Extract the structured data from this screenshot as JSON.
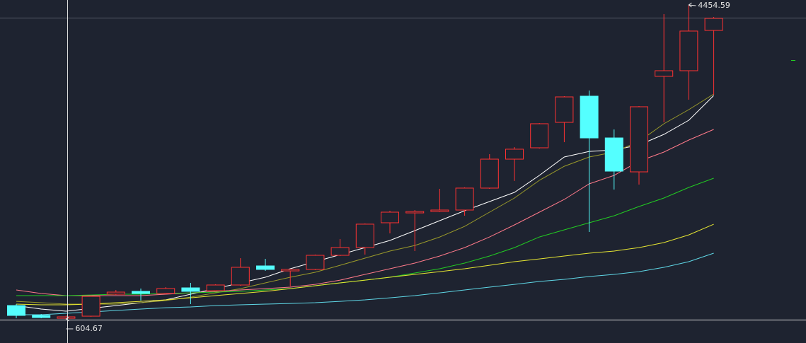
{
  "chart_data": {
    "type": "candlestick",
    "categories": [
      null,
      null,
      null,
      null,
      null,
      null,
      null,
      null,
      null,
      null,
      null,
      null,
      null,
      null,
      null,
      null,
      null,
      null,
      null,
      null,
      null,
      null,
      null,
      null,
      null,
      null,
      null,
      null,
      null
    ],
    "open": [
      769,
      648,
      613,
      639,
      908,
      943,
      917,
      986,
      951,
      1021,
      1255,
      1194,
      1212,
      1385,
      1480,
      1784,
      1905,
      1922,
      1940,
      2209,
      2564,
      2703,
      3015,
      3336,
      2824,
      2408,
      3579,
      3648,
      4142
    ],
    "high": [
      787,
      665,
      648,
      891,
      960,
      978,
      995,
      1047,
      1030,
      1350,
      1342,
      1220,
      1394,
      1585,
      1775,
      1931,
      1940,
      2200,
      2218,
      2625,
      2712,
      3006,
      3336,
      3405,
      2928,
      3215,
      4342,
      4454.59,
      4307
    ],
    "low": [
      613,
      613,
      604.67,
      631,
      900,
      830,
      908,
      787,
      943,
      1012,
      1194,
      1004,
      1203,
      1376,
      1394,
      1654,
      1437,
      1914,
      1871,
      2200,
      2296,
      2694,
      2772,
      1671,
      2191,
      2252,
      3015,
      3293,
      3353
    ],
    "close": [
      648,
      622,
      631,
      882,
      934,
      917,
      978,
      943,
      1021,
      1238,
      1212,
      1212,
      1385,
      1480,
      1767,
      1914,
      1922,
      1940,
      2209,
      2564,
      2686,
      2998,
      3327,
      2824,
      2417,
      3206,
      3648,
      4134,
      4290
    ],
    "up_color": "#ff3232",
    "down_color": "#54ffff",
    "series": [
      {
        "color": "#ffffff",
        "values": [
          769,
          726,
          700,
          735,
          769,
          804,
          839,
          908,
          977,
          1047,
          1116,
          1220,
          1307,
          1393,
          1480,
          1567,
          1688,
          1810,
          1931,
          2044,
          2157,
          2365,
          2590,
          2659,
          2677,
          2737,
          2868,
          3041,
          3344
        ]
      },
      {
        "color": "#9a9a2a",
        "values": [
          821,
          804,
          787,
          787,
          787,
          804,
          830,
          873,
          925,
          977,
          1047,
          1116,
          1177,
          1263,
          1350,
          1437,
          1506,
          1610,
          1740,
          1914,
          2087,
          2304,
          2477,
          2590,
          2651,
          2781,
          2998,
          3171,
          3362
        ]
      },
      {
        "color": "#ff7a8a",
        "values": [
          960,
          917,
          891,
          891,
          891,
          891,
          908,
          925,
          943,
          960,
          977,
          995,
          1029,
          1081,
          1151,
          1220,
          1290,
          1376,
          1480,
          1610,
          1758,
          1914,
          2070,
          2261,
          2365,
          2538,
          2651,
          2798,
          2928
        ]
      },
      {
        "color": "#22cc22",
        "values": [
          891,
          891,
          891,
          899,
          908,
          908,
          917,
          925,
          934,
          943,
          960,
          977,
          1012,
          1047,
          1081,
          1116,
          1168,
          1220,
          1290,
          1376,
          1480,
          1610,
          1697,
          1784,
          1870,
          1983,
          2087,
          2217,
          2330
        ]
      },
      {
        "color": "#e6e632",
        "values": [
          787,
          778,
          778,
          787,
          804,
          821,
          839,
          864,
          891,
          917,
          943,
          977,
          1012,
          1047,
          1081,
          1116,
          1151,
          1185,
          1220,
          1263,
          1307,
          1341,
          1376,
          1411,
          1437,
          1480,
          1541,
          1636,
          1766
        ]
      },
      {
        "color": "#5fd7e6",
        "values": [
          657,
          657,
          674,
          691,
          709,
          726,
          743,
          752,
          769,
          778,
          787,
          795,
          804,
          821,
          839,
          864,
          891,
          925,
          960,
          995,
          1029,
          1064,
          1090,
          1125,
          1151,
          1185,
          1238,
          1307,
          1411
        ]
      }
    ],
    "ylim": [
      310,
      4515
    ],
    "annotations": [
      {
        "label": "4454.59",
        "value": 4454.59,
        "index": 27
      },
      {
        "label": "604.67",
        "value": 604.67,
        "index": 2
      }
    ]
  }
}
